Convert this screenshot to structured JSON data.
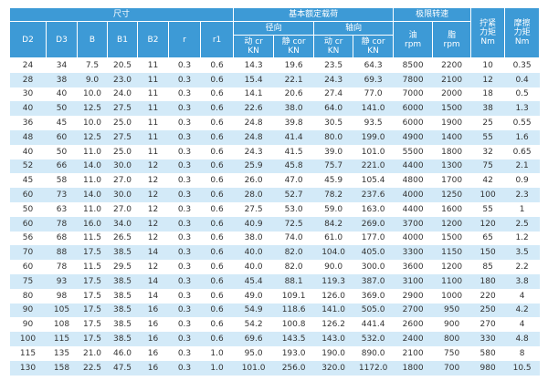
{
  "table": {
    "group_size": "尺寸",
    "group_load": "基本额定载荷",
    "group_speed": "极限转速",
    "radial": "径向",
    "axial": "轴向",
    "size_columns": [
      "D2",
      "D3",
      "B",
      "B1",
      "B2",
      "r",
      "r1"
    ],
    "load_columns": [
      [
        "动 cr",
        "KN"
      ],
      [
        "静 cor",
        "KN"
      ],
      [
        "动 cr",
        "KN"
      ],
      [
        "静 cor",
        "KN"
      ]
    ],
    "speed_columns": [
      [
        "油",
        "rpm"
      ],
      [
        "脂",
        "rpm"
      ]
    ],
    "torque_columns": [
      [
        "拧紧",
        "力矩",
        "Nm"
      ],
      [
        "摩擦",
        "力矩",
        "Nm"
      ]
    ],
    "rows": [
      [
        "24",
        "34",
        "7.5",
        "20.5",
        "11",
        "0.3",
        "0.6",
        "14.3",
        "19.6",
        "23.5",
        "64.3",
        "8500",
        "2200",
        "10",
        "0.35"
      ],
      [
        "28",
        "38",
        "9.0",
        "23.0",
        "11",
        "0.3",
        "0.6",
        "15.4",
        "22.1",
        "24.3",
        "69.3",
        "7800",
        "2100",
        "12",
        "0.4"
      ],
      [
        "30",
        "40",
        "10.0",
        "24.0",
        "11",
        "0.3",
        "0.6",
        "14.1",
        "20.6",
        "27.4",
        "77.0",
        "7000",
        "2000",
        "18",
        "0.5"
      ],
      [
        "40",
        "50",
        "12.5",
        "27.5",
        "11",
        "0.3",
        "0.6",
        "22.6",
        "38.0",
        "64.0",
        "141.0",
        "6000",
        "1500",
        "38",
        "1.3"
      ],
      [
        "36",
        "45",
        "10.0",
        "25.0",
        "11",
        "0.3",
        "0.6",
        "24.8",
        "39.8",
        "30.5",
        "93.5",
        "6000",
        "1900",
        "25",
        "0.55"
      ],
      [
        "48",
        "60",
        "12.5",
        "27.5",
        "11",
        "0.3",
        "0.6",
        "24.8",
        "41.4",
        "80.0",
        "199.0",
        "4900",
        "1400",
        "55",
        "1.6"
      ],
      [
        "40",
        "50",
        "11.0",
        "25.0",
        "11",
        "0.3",
        "0.6",
        "24.3",
        "41.5",
        "39.0",
        "101.0",
        "5500",
        "1800",
        "32",
        "0.65"
      ],
      [
        "52",
        "66",
        "14.0",
        "30.0",
        "12",
        "0.3",
        "0.6",
        "25.9",
        "45.8",
        "75.7",
        "221.0",
        "4400",
        "1300",
        "75",
        "2.1"
      ],
      [
        "45",
        "58",
        "11.0",
        "27.0",
        "12",
        "0.3",
        "0.6",
        "26.0",
        "47.0",
        "45.9",
        "105.4",
        "4800",
        "1700",
        "42",
        "0.9"
      ],
      [
        "60",
        "73",
        "14.0",
        "30.0",
        "12",
        "0.3",
        "0.6",
        "28.0",
        "52.7",
        "78.2",
        "237.6",
        "4000",
        "1250",
        "100",
        "2.3"
      ],
      [
        "50",
        "63",
        "11.0",
        "27.0",
        "12",
        "0.3",
        "0.6",
        "27.5",
        "53.0",
        "59.0",
        "163.0",
        "4400",
        "1600",
        "55",
        "1"
      ],
      [
        "60",
        "78",
        "16.0",
        "34.0",
        "12",
        "0.3",
        "0.6",
        "40.9",
        "72.5",
        "84.2",
        "269.0",
        "3700",
        "1200",
        "120",
        "2.5"
      ],
      [
        "56",
        "68",
        "11.5",
        "26.5",
        "12",
        "0.3",
        "0.6",
        "38.0",
        "74.0",
        "61.0",
        "177.0",
        "4000",
        "1500",
        "65",
        "1.2"
      ],
      [
        "70",
        "88",
        "17.5",
        "38.5",
        "14",
        "0.3",
        "0.6",
        "40.0",
        "82.0",
        "104.0",
        "405.0",
        "3300",
        "1150",
        "150",
        "3.5"
      ],
      [
        "60",
        "78",
        "11.5",
        "29.5",
        "12",
        "0.3",
        "0.6",
        "40.0",
        "82.0",
        "90.0",
        "300.0",
        "3600",
        "1200",
        "85",
        "2.2"
      ],
      [
        "75",
        "93",
        "17.5",
        "38.5",
        "14",
        "0.3",
        "0.6",
        "45.4",
        "88.1",
        "119.3",
        "387.0",
        "3100",
        "1100",
        "180",
        "3.8"
      ],
      [
        "80",
        "98",
        "17.5",
        "38.5",
        "14",
        "0.3",
        "0.6",
        "49.0",
        "109.1",
        "126.0",
        "369.0",
        "2900",
        "1000",
        "220",
        "4"
      ],
      [
        "90",
        "105",
        "17.5",
        "38.5",
        "16",
        "0.3",
        "0.6",
        "54.9",
        "118.6",
        "141.0",
        "505.0",
        "2700",
        "950",
        "250",
        "4.2"
      ],
      [
        "90",
        "108",
        "17.5",
        "38.5",
        "16",
        "0.3",
        "0.6",
        "54.2",
        "100.8",
        "126.2",
        "441.4",
        "2600",
        "900",
        "270",
        "4"
      ],
      [
        "100",
        "115",
        "17.5",
        "38.5",
        "16",
        "0.3",
        "0.6",
        "69.6",
        "143.5",
        "143.0",
        "532.0",
        "2400",
        "800",
        "330",
        "4.8"
      ],
      [
        "115",
        "135",
        "21.0",
        "46.0",
        "16",
        "0.3",
        "1.0",
        "95.0",
        "193.0",
        "190.0",
        "890.0",
        "2100",
        "750",
        "580",
        "8"
      ],
      [
        "130",
        "158",
        "22.5",
        "47.5",
        "16",
        "0.3",
        "1.0",
        "101.0",
        "256.0",
        "320.0",
        "1172.0",
        "1800",
        "700",
        "980",
        "10.5"
      ]
    ]
  }
}
